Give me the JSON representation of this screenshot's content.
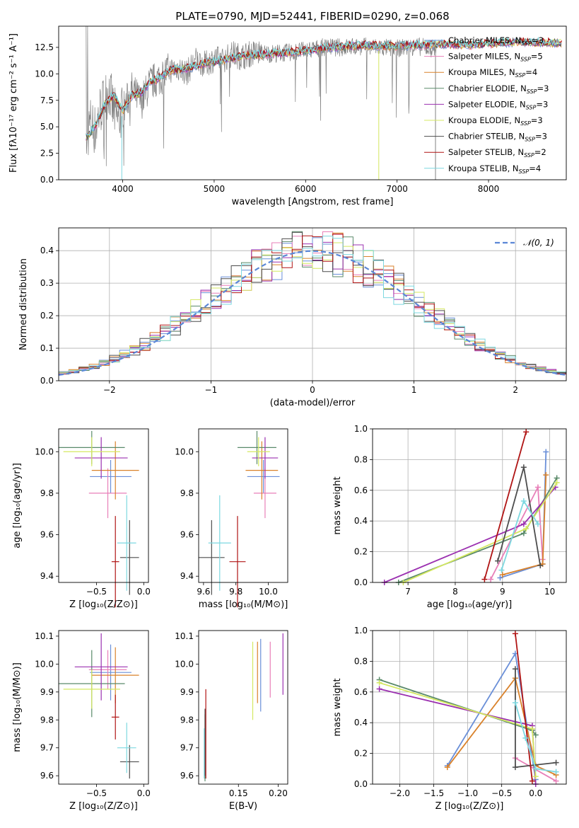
{
  "figure_title": "PLATE=0790, MJD=52441, FIBERID=0290, z=0.068",
  "chart_data": [
    {
      "type": "line",
      "name": "spectrum",
      "xlabel": "wavelength [Angstrom, rest frame]",
      "ylabel": "Flux [fλ10⁻¹⁷ erg cm⁻² s⁻¹ A⁻¹]",
      "xlim": [
        3300,
        8850
      ],
      "ylim": [
        0,
        14.5
      ],
      "xticks": [
        4000,
        5000,
        6000,
        7000,
        8000
      ],
      "yticks": [
        0.0,
        2.5,
        5.0,
        7.5,
        10.0,
        12.5
      ],
      "legend": "right",
      "observed_color": "#808080",
      "observed_spectrum": {
        "x": [
          3600,
          3650,
          3700,
          3750,
          3800,
          3850,
          3900,
          3950,
          4000,
          4100,
          4200,
          4300,
          4400,
          4500,
          4600,
          4700,
          4800,
          4900,
          5000,
          5100,
          5200,
          5300,
          5400,
          5500,
          5600,
          5800,
          6000,
          6200,
          6400,
          6600,
          6800,
          7000,
          7200,
          7400
        ],
        "y": [
          3.8,
          5.5,
          4.6,
          6.6,
          7.5,
          8.6,
          6.5,
          5.6,
          6.5,
          8.5,
          7.3,
          9.1,
          9.6,
          10.3,
          10.6,
          10.1,
          11.3,
          10.9,
          11.4,
          11.3,
          11.9,
          11.6,
          11.9,
          12.0,
          11.9,
          12.0,
          12.2,
          12.5,
          12.5,
          12.6,
          12.5,
          12.4,
          12.6,
          12.4
        ]
      },
      "model_spectrum_shape": {
        "x": [
          3600,
          3700,
          3800,
          3900,
          4000,
          4100,
          4200,
          4300,
          4400,
          4500,
          4700,
          4900,
          5100,
          5300,
          5500,
          5800,
          6000,
          6300,
          6600,
          6900,
          7200,
          7500,
          7800,
          8100,
          8400,
          8800
        ],
        "y": [
          4.0,
          5.0,
          7.0,
          8.0,
          6.5,
          8.0,
          8.2,
          9.2,
          9.6,
          10.3,
          10.5,
          11.0,
          11.3,
          11.7,
          11.8,
          12.0,
          12.2,
          12.5,
          12.7,
          12.6,
          12.7,
          12.8,
          12.7,
          12.9,
          13.0,
          12.9
        ]
      },
      "series": [
        {
          "name": "Chabrier MILES, N_SSP=3",
          "label_main": "Chabrier MILES, N",
          "label_sub": "SSP",
          "label_tail": "=3",
          "color": "#6a8fd8"
        },
        {
          "name": "Salpeter MILES, N_SSP=5",
          "label_main": "Salpeter MILES, N",
          "label_sub": "SSP",
          "label_tail": "=5",
          "color": "#e87fb8"
        },
        {
          "name": "Kroupa MILES, N_SSP=4",
          "label_main": "Kroupa MILES, N",
          "label_sub": "SSP",
          "label_tail": "=4",
          "color": "#d9822b"
        },
        {
          "name": "Chabrier ELODIE, N_SSP=3",
          "label_main": "Chabrier ELODIE, N",
          "label_sub": "SSP",
          "label_tail": "=3",
          "color": "#5a8a6a"
        },
        {
          "name": "Salpeter ELODIE, N_SSP=3",
          "label_main": "Salpeter ELODIE, N",
          "label_sub": "SSP",
          "label_tail": "=3",
          "color": "#9b30b0"
        },
        {
          "name": "Kroupa ELODIE, N_SSP=3",
          "label_main": "Kroupa ELODIE, N",
          "label_sub": "SSP",
          "label_tail": "=3",
          "color": "#d4e860"
        },
        {
          "name": "Chabrier STELIB, N_SSP=3",
          "label_main": "Chabrier STELIB, N",
          "label_sub": "SSP",
          "label_tail": "=3",
          "color": "#4d4d4d"
        },
        {
          "name": "Salpeter STELIB, N_SSP=2",
          "label_main": "Salpeter STELIB, N",
          "label_sub": "SSP",
          "label_tail": "=2",
          "color": "#b01414"
        },
        {
          "name": "Kroupa STELIB, N_SSP=4",
          "label_main": "Kroupa STELIB, N",
          "label_sub": "SSP",
          "label_tail": "=4",
          "color": "#7dd8e0"
        }
      ]
    },
    {
      "type": "bar",
      "name": "residual_histogram",
      "xlabel": "(data-model)/error",
      "ylabel": "Normed distribution",
      "xlim": [
        -2.5,
        2.5
      ],
      "ylim": [
        0,
        0.47
      ],
      "xticks": [
        -2,
        -1,
        0,
        1,
        2
      ],
      "yticks": [
        0.0,
        0.1,
        0.2,
        0.3,
        0.4
      ],
      "grid": true,
      "legend": "top-right",
      "bins": 50,
      "reference_curve": {
        "label": "𝒩(0, 1)",
        "style": "dashed",
        "color": "#5b87d6",
        "mean": 0,
        "sigma": 1
      }
    },
    {
      "type": "scatter",
      "name": "age_vs_metallicity",
      "xlabel": "Z [log₁₀(Z/Z⊙)]",
      "ylabel": "age  [log₁₀(age/yr)]",
      "xlim": [
        -0.9,
        0.05
      ],
      "ylim": [
        9.37,
        10.11
      ],
      "xticks": [
        -0.5,
        0.0
      ],
      "yticks": [
        9.4,
        9.6,
        9.8,
        10.0
      ],
      "points": [
        {
          "series": 0,
          "x": -0.35,
          "y": 9.88,
          "xerr": 0.22,
          "yerr": 0.08
        },
        {
          "series": 1,
          "x": -0.38,
          "y": 9.8,
          "xerr": 0.2,
          "yerr": 0.12
        },
        {
          "series": 2,
          "x": -0.3,
          "y": 9.91,
          "xerr": 0.25,
          "yerr": 0.14
        },
        {
          "series": 3,
          "x": -0.55,
          "y": 10.02,
          "xerr": 0.35,
          "yerr": 0.08
        },
        {
          "series": 4,
          "x": -0.45,
          "y": 9.97,
          "xerr": 0.28,
          "yerr": 0.1
        },
        {
          "series": 5,
          "x": -0.55,
          "y": 10.0,
          "xerr": 0.3,
          "yerr": 0.07
        },
        {
          "series": 6,
          "x": -0.15,
          "y": 9.49,
          "xerr": 0.1,
          "yerr": 0.18
        },
        {
          "series": 7,
          "x": -0.3,
          "y": 9.47,
          "xerr": 0.04,
          "yerr": 0.22
        },
        {
          "series": 8,
          "x": -0.18,
          "y": 9.56,
          "xerr": 0.1,
          "yerr": 0.23
        }
      ]
    },
    {
      "type": "scatter",
      "name": "age_vs_mass",
      "xlabel": "mass [log₁₀(M/M⊙)]",
      "ylabel": "",
      "xlim": [
        9.57,
        10.12
      ],
      "ylim": [
        9.37,
        10.11
      ],
      "xticks": [
        9.6,
        9.8,
        10.0
      ],
      "yticks": [
        9.4,
        9.6,
        9.8,
        10.0
      ],
      "points": [
        {
          "series": 0,
          "x": 9.97,
          "y": 9.88,
          "xerr": 0.1,
          "yerr": 0.08
        },
        {
          "series": 1,
          "x": 9.98,
          "y": 9.8,
          "xerr": 0.07,
          "yerr": 0.12
        },
        {
          "series": 2,
          "x": 9.96,
          "y": 9.91,
          "xerr": 0.1,
          "yerr": 0.14
        },
        {
          "series": 3,
          "x": 9.93,
          "y": 10.02,
          "xerr": 0.12,
          "yerr": 0.08
        },
        {
          "series": 4,
          "x": 9.98,
          "y": 9.97,
          "xerr": 0.08,
          "yerr": 0.1
        },
        {
          "series": 5,
          "x": 9.94,
          "y": 10.0,
          "xerr": 0.07,
          "yerr": 0.07
        },
        {
          "series": 6,
          "x": 9.65,
          "y": 9.49,
          "xerr": 0.08,
          "yerr": 0.18
        },
        {
          "series": 7,
          "x": 9.81,
          "y": 9.47,
          "xerr": 0.05,
          "yerr": 0.22
        },
        {
          "series": 8,
          "x": 9.7,
          "y": 9.56,
          "xerr": 0.07,
          "yerr": 0.23
        }
      ]
    },
    {
      "type": "line",
      "name": "mass_weight_vs_age",
      "xlabel": "age  [log₁₀(age/yr)]",
      "ylabel": "mass weight",
      "xlim": [
        6.25,
        10.35
      ],
      "ylim": [
        0,
        1.0
      ],
      "xticks": [
        7,
        8,
        9,
        10
      ],
      "yticks": [
        0.0,
        0.2,
        0.4,
        0.6,
        0.8,
        1.0
      ],
      "grid": true,
      "series_points": [
        {
          "series": 0,
          "x": [
            8.95,
            9.85,
            9.92
          ],
          "y": [
            0.03,
            0.12,
            0.85
          ]
        },
        {
          "series": 1,
          "x": [
            8.75,
            9.75,
            9.85
          ],
          "y": [
            0.02,
            0.62,
            0.15
          ]
        },
        {
          "series": 2,
          "x": [
            9.0,
            9.85,
            9.92
          ],
          "y": [
            0.05,
            0.12,
            0.7
          ]
        },
        {
          "series": 3,
          "x": [
            6.8,
            9.45,
            10.15
          ],
          "y": [
            0.0,
            0.32,
            0.68
          ]
        },
        {
          "series": 4,
          "x": [
            6.5,
            9.45,
            10.12
          ],
          "y": [
            0.0,
            0.38,
            0.62
          ]
        },
        {
          "series": 5,
          "x": [
            6.9,
            9.5,
            10.15
          ],
          "y": [
            0.0,
            0.35,
            0.65
          ]
        },
        {
          "series": 6,
          "x": [
            8.9,
            9.45,
            9.8
          ],
          "y": [
            0.14,
            0.75,
            0.11
          ]
        },
        {
          "series": 7,
          "x": [
            8.62,
            9.5
          ],
          "y": [
            0.02,
            0.98
          ]
        },
        {
          "series": 8,
          "x": [
            8.98,
            9.45,
            9.75
          ],
          "y": [
            0.08,
            0.53,
            0.38
          ]
        }
      ]
    },
    {
      "type": "scatter",
      "name": "mass_vs_metallicity",
      "xlabel": "Z [log₁₀(Z/Z⊙)]",
      "ylabel": "mass [log₁₀(M/M⊙)]",
      "xlim": [
        -0.9,
        0.05
      ],
      "ylim": [
        9.57,
        10.12
      ],
      "xticks": [
        -0.5,
        0.0
      ],
      "yticks": [
        9.6,
        9.7,
        9.8,
        9.9,
        10.0,
        10.1
      ],
      "points": [
        {
          "series": 0,
          "x": -0.35,
          "y": 9.97,
          "xerr": 0.22,
          "yerr": 0.1
        },
        {
          "series": 1,
          "x": -0.38,
          "y": 9.98,
          "xerr": 0.2,
          "yerr": 0.07
        },
        {
          "series": 2,
          "x": -0.3,
          "y": 9.96,
          "xerr": 0.25,
          "yerr": 0.1
        },
        {
          "series": 3,
          "x": -0.55,
          "y": 9.93,
          "xerr": 0.35,
          "yerr": 0.12
        },
        {
          "series": 4,
          "x": -0.45,
          "y": 9.99,
          "xerr": 0.28,
          "yerr": 0.12
        },
        {
          "series": 5,
          "x": -0.55,
          "y": 9.91,
          "xerr": 0.3,
          "yerr": 0.07
        },
        {
          "series": 6,
          "x": -0.15,
          "y": 9.65,
          "xerr": 0.1,
          "yerr": 0.06
        },
        {
          "series": 7,
          "x": -0.3,
          "y": 9.81,
          "xerr": 0.04,
          "yerr": 0.08
        },
        {
          "series": 8,
          "x": -0.18,
          "y": 9.7,
          "xerr": 0.1,
          "yerr": 0.09
        }
      ]
    },
    {
      "type": "scatter",
      "name": "mass_vs_extinction",
      "xlabel": "E(B-V)",
      "ylabel": "",
      "xlim": [
        0.1,
        0.212
      ],
      "ylim": [
        9.57,
        10.12
      ],
      "xticks": [
        0.15,
        0.2
      ],
      "yticks": [
        9.6,
        9.7,
        9.8,
        9.9,
        10.0,
        10.1
      ],
      "points": [
        {
          "series": 0,
          "x": 0.178,
          "y": 9.96,
          "yerr": 0.13
        },
        {
          "series": 1,
          "x": 0.19,
          "y": 9.98,
          "yerr": 0.1
        },
        {
          "series": 2,
          "x": 0.174,
          "y": 9.97,
          "yerr": 0.11
        },
        {
          "series": 3,
          "x": 0.108,
          "y": 9.7,
          "yerr": 0.12
        },
        {
          "series": 4,
          "x": 0.206,
          "y": 10.0,
          "yerr": 0.11
        },
        {
          "series": 5,
          "x": 0.168,
          "y": 9.94,
          "yerr": 0.14
        },
        {
          "series": 6,
          "x": 0.108,
          "y": 9.72,
          "yerr": 0.12
        },
        {
          "series": 7,
          "x": 0.109,
          "y": 9.75,
          "yerr": 0.16
        },
        {
          "series": 8,
          "x": 0.107,
          "y": 9.68,
          "yerr": 0.09
        }
      ]
    },
    {
      "type": "line",
      "name": "mass_weight_vs_metallicity",
      "xlabel": "Z [log₁₀(Z/Z⊙)]",
      "ylabel": "mass weight",
      "xlim": [
        -2.4,
        0.45
      ],
      "ylim": [
        0,
        1.0
      ],
      "xticks": [
        -2.0,
        -1.5,
        -1.0,
        -0.5,
        0.0
      ],
      "yticks": [
        0.0,
        0.2,
        0.4,
        0.6,
        0.8,
        1.0
      ],
      "grid": true,
      "series_points": [
        {
          "series": 0,
          "x": [
            -1.3,
            -0.3,
            0.0
          ],
          "y": [
            0.12,
            0.85,
            0.03
          ]
        },
        {
          "series": 1,
          "x": [
            -0.3,
            0.3
          ],
          "y": [
            0.17,
            0.02
          ]
        },
        {
          "series": 2,
          "x": [
            -1.3,
            -0.3,
            0.0,
            0.3
          ],
          "y": [
            0.11,
            0.69,
            0.12,
            0.06
          ]
        },
        {
          "series": 3,
          "x": [
            -2.3,
            -0.05,
            0.0
          ],
          "y": [
            0.68,
            0.35,
            0.32
          ]
        },
        {
          "series": 4,
          "x": [
            -2.3,
            -0.05,
            0.0
          ],
          "y": [
            0.62,
            0.38,
            0.0
          ]
        },
        {
          "series": 5,
          "x": [
            -2.3,
            -0.05,
            0.0
          ],
          "y": [
            0.66,
            0.36,
            0.05
          ]
        },
        {
          "series": 6,
          "x": [
            -0.3,
            -0.3,
            0.3
          ],
          "y": [
            0.75,
            0.11,
            0.14
          ]
        },
        {
          "series": 7,
          "x": [
            -0.3,
            -0.05
          ],
          "y": [
            0.98,
            0.02
          ]
        },
        {
          "series": 8,
          "x": [
            -0.3,
            -0.15,
            0.0,
            0.3
          ],
          "y": [
            0.53,
            0.3,
            0.1,
            0.08
          ]
        }
      ]
    }
  ]
}
